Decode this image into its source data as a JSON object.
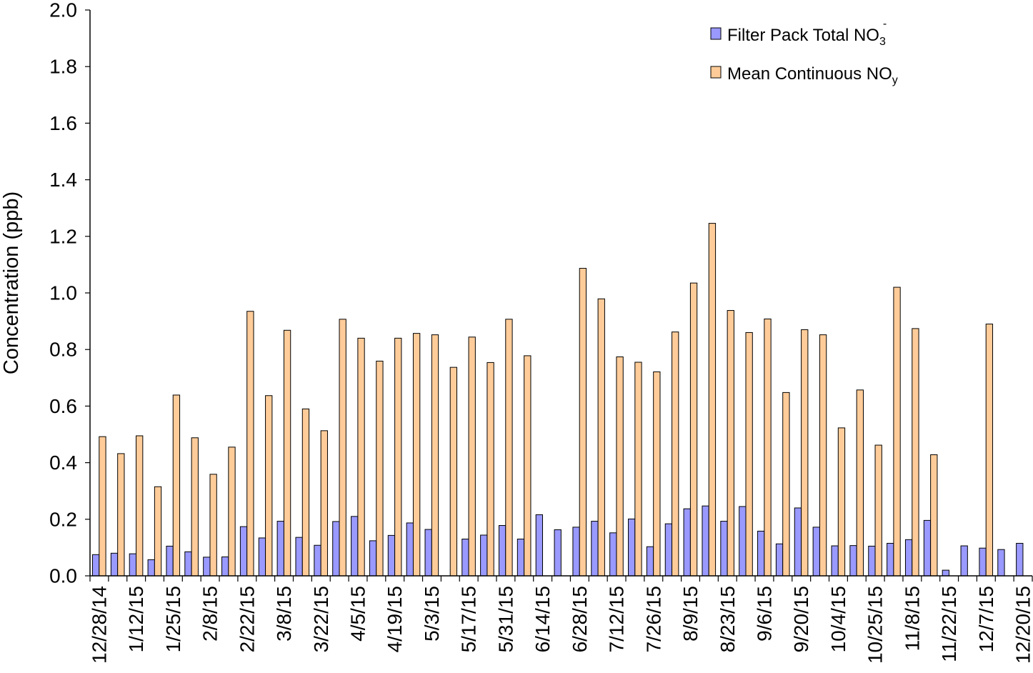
{
  "chart_data": {
    "type": "bar",
    "title": "",
    "xlabel": "",
    "ylabel": "Concentration (ppb)",
    "ylim": [
      0,
      2.0
    ],
    "ytick_labels": [
      "0.0",
      "0.2",
      "0.4",
      "0.6",
      "0.8",
      "1.0",
      "1.2",
      "1.4",
      "1.6",
      "1.8",
      "2.0"
    ],
    "grid": false,
    "legend_position": "top-right",
    "categories": [
      "12/28/14",
      "",
      "1/12/15",
      "",
      "1/25/15",
      "",
      "2/8/15",
      "",
      "2/22/15",
      "",
      "3/8/15",
      "",
      "3/22/15",
      "",
      "4/5/15",
      "",
      "4/19/15",
      "",
      "5/3/15",
      "",
      "5/17/15",
      "",
      "5/31/15",
      "",
      "6/14/15",
      "",
      "6/28/15",
      "",
      "7/12/15",
      "",
      "7/26/15",
      "",
      "8/9/15",
      "",
      "8/23/15",
      "",
      "9/6/15",
      "",
      "9/20/15",
      "",
      "10/4/15",
      "",
      "10/25/15",
      "",
      "11/8/15",
      "",
      "11/22/15",
      "",
      "12/7/15",
      "",
      "12/20/15"
    ],
    "series": [
      {
        "name": "Filter Pack Total NO",
        "name_sub": "3",
        "name_sup": "-",
        "color": "#9999FF",
        "values": [
          0.075,
          0.08,
          0.078,
          0.057,
          0.105,
          0.085,
          0.066,
          0.067,
          0.174,
          0.134,
          0.193,
          0.136,
          0.108,
          0.192,
          0.21,
          0.124,
          0.143,
          0.187,
          0.164,
          null,
          0.13,
          0.144,
          0.178,
          0.13,
          0.216,
          0.163,
          0.172,
          0.193,
          0.152,
          0.201,
          0.103,
          0.184,
          0.237,
          0.247,
          0.193,
          0.245,
          0.158,
          0.113,
          0.24,
          0.172,
          0.106,
          0.107,
          0.105,
          0.115,
          0.128,
          0.196,
          0.02,
          0.106,
          0.098,
          0.093,
          0.115
        ]
      },
      {
        "name": "Mean Continuous NO",
        "name_sub": "y",
        "color": "#FFCC99",
        "values": [
          0.492,
          0.432,
          0.495,
          0.315,
          0.639,
          0.488,
          0.359,
          0.455,
          0.935,
          0.637,
          0.868,
          0.59,
          0.513,
          0.907,
          0.84,
          0.759,
          0.84,
          0.857,
          0.852,
          0.737,
          0.844,
          0.754,
          0.907,
          0.778,
          null,
          null,
          1.087,
          0.979,
          0.774,
          0.755,
          0.721,
          0.862,
          1.035,
          1.246,
          0.938,
          0.86,
          0.908,
          0.648,
          0.87,
          0.852,
          0.523,
          0.657,
          0.462,
          1.02,
          0.874,
          0.428,
          null,
          null,
          0.89,
          null,
          null
        ]
      }
    ]
  }
}
